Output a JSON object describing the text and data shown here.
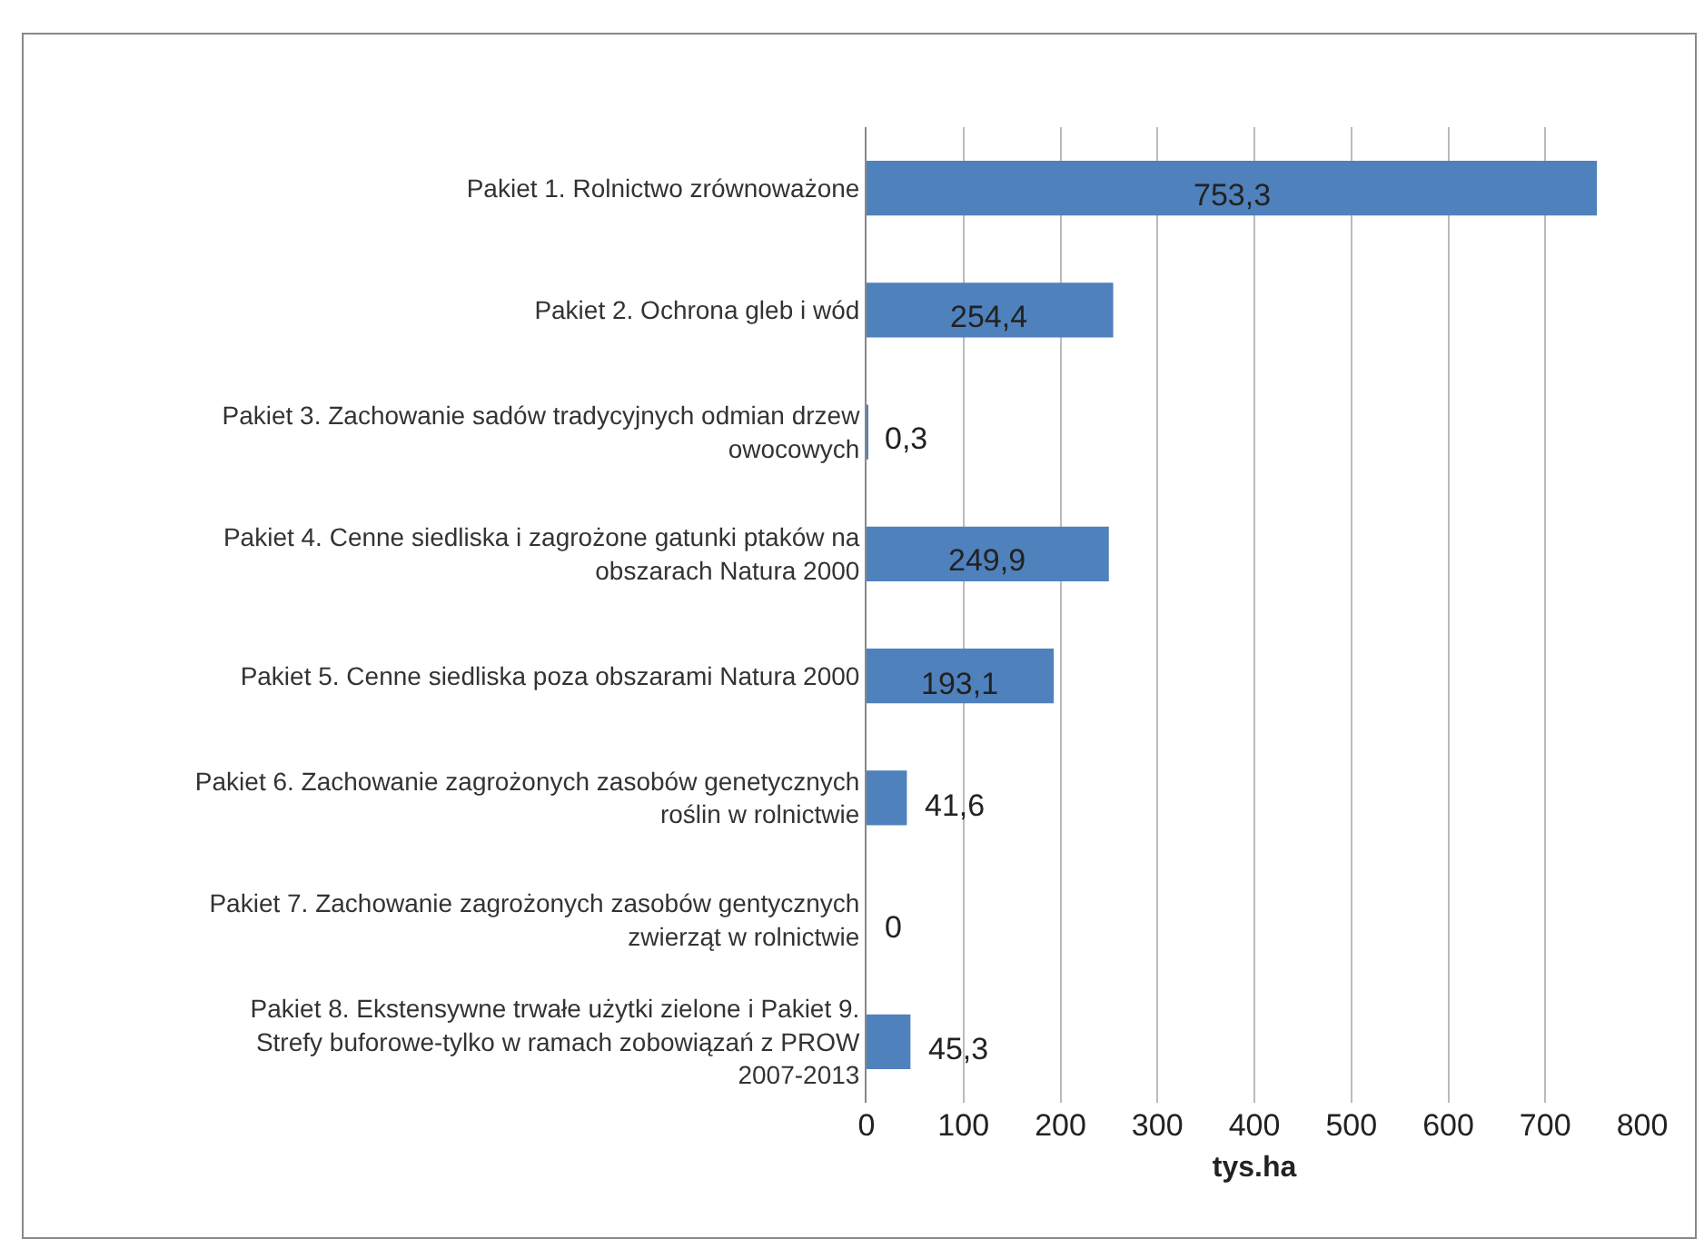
{
  "chart_data": {
    "type": "bar",
    "orientation": "horizontal",
    "xlabel": "tys.ha",
    "categories": [
      "Pakiet 1. Rolnictwo zrównoważone",
      "Pakiet 2. Ochrona gleb i wód",
      "Pakiet 3. Zachowanie sadów tradycyjnych odmian drzew owocowych",
      "Pakiet 4. Cenne siedliska i zagrożone gatunki ptaków na obszarach Natura 2000",
      "Pakiet 5. Cenne siedliska poza obszarami Natura 2000",
      "Pakiet 6. Zachowanie zagrożonych zasobów genetycznych roślin w rolnictwie",
      "Pakiet 7. Zachowanie zagrożonych zasobów gentycznych zwierząt w rolnictwie",
      "Pakiet 8. Ekstensywne trwałe użytki zielone i Pakiet 9. Strefy buforowe-tylko w ramach zobowiązań z PROW 2007-2013"
    ],
    "values": [
      753.3,
      254.4,
      0.3,
      249.9,
      193.1,
      41.6,
      0,
      45.3
    ],
    "value_labels": [
      "753,3",
      "254,4",
      "0,3",
      "249,9",
      "193,1",
      "41,6",
      "0",
      "45,3"
    ],
    "color": "#4f81bd",
    "xlim": [
      0,
      800
    ],
    "xticks": [
      0,
      100,
      200,
      300,
      400,
      500,
      600,
      700,
      800
    ],
    "grid": "x"
  }
}
